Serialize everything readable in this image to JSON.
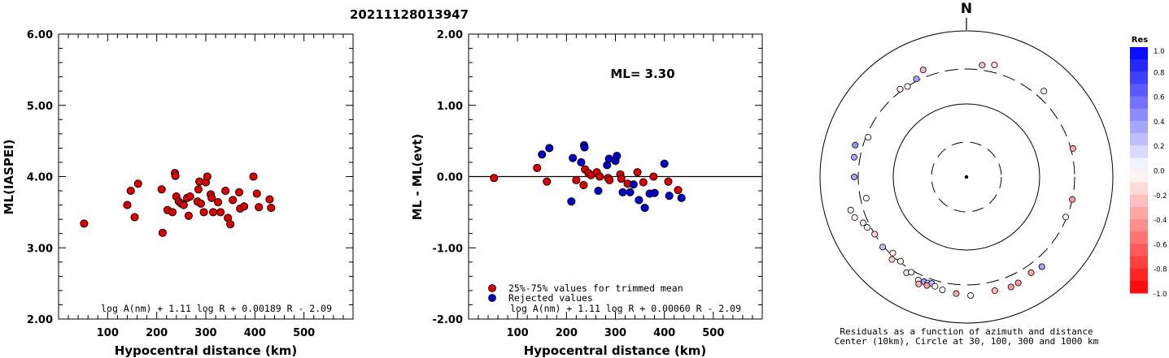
{
  "title": "20211128013947",
  "chart_data": [
    {
      "type": "scatter",
      "title": "",
      "xlabel": "Hypocentral distance (km)",
      "ylabel": "ML(IASPEI)",
      "xlim": [
        0,
        600
      ],
      "ylim": [
        2.0,
        6.0
      ],
      "xticks": [
        "100",
        "200",
        "300",
        "400",
        "500"
      ],
      "yticks": [
        "2.00",
        "3.00",
        "4.00",
        "5.00",
        "6.00"
      ],
      "formula": "log A(nm) + 1.11 log R + 0.00189 R - 2.09",
      "series": [
        {
          "color": "#dd0000",
          "points": [
            [
              52,
              3.34
            ],
            [
              140,
              3.6
            ],
            [
              147,
              3.8
            ],
            [
              155,
              3.43
            ],
            [
              162,
              3.9
            ],
            [
              210,
              3.82
            ],
            [
              212,
              3.21
            ],
            [
              222,
              3.53
            ],
            [
              232,
              3.5
            ],
            [
              237,
              4.05
            ],
            [
              238,
              4.01
            ],
            [
              240,
              3.72
            ],
            [
              245,
              3.65
            ],
            [
              250,
              3.62
            ],
            [
              255,
              3.6
            ],
            [
              262,
              3.7
            ],
            [
              265,
              3.45
            ],
            [
              268,
              3.72
            ],
            [
              283,
              3.65
            ],
            [
              285,
              3.82
            ],
            [
              287,
              3.93
            ],
            [
              290,
              3.62
            ],
            [
              296,
              3.5
            ],
            [
              300,
              3.92
            ],
            [
              303,
              4.0
            ],
            [
              310,
              3.75
            ],
            [
              312,
              3.7
            ],
            [
              315,
              3.5
            ],
            [
              325,
              3.64
            ],
            [
              330,
              3.5
            ],
            [
              340,
              3.8
            ],
            [
              345,
              3.42
            ],
            [
              350,
              3.33
            ],
            [
              355,
              3.67
            ],
            [
              368,
              3.78
            ],
            [
              370,
              3.55
            ],
            [
              378,
              3.58
            ],
            [
              397,
              4.0
            ],
            [
              404,
              3.76
            ],
            [
              408,
              3.57
            ],
            [
              430,
              3.68
            ],
            [
              433,
              3.56
            ]
          ]
        }
      ]
    },
    {
      "type": "scatter",
      "title": "",
      "xlabel": "Hypocentral distance (km)",
      "ylabel": "ML - ML(evt)",
      "xlim": [
        0,
        600
      ],
      "ylim": [
        -2.0,
        2.0
      ],
      "xticks": [
        "100",
        "200",
        "300",
        "400",
        "500"
      ],
      "yticks": [
        "-2.00",
        "-1.00",
        "0.00",
        "1.00",
        "2.00"
      ],
      "annotation": "ML= 3.30",
      "formula": "log A(nm) + 1.11 log R + 0.00060 R - 2.09",
      "series": [
        {
          "name": "25%-75% values for trimmed mean",
          "color": "#dd0000",
          "points": [
            [
              52,
              -0.02
            ],
            [
              140,
              0.12
            ],
            [
              160,
              -0.07
            ],
            [
              220,
              -0.05
            ],
            [
              235,
              -0.12
            ],
            [
              238,
              0.1
            ],
            [
              245,
              0.05
            ],
            [
              250,
              0.02
            ],
            [
              262,
              0.06
            ],
            [
              268,
              0.0
            ],
            [
              285,
              -0.02
            ],
            [
              288,
              -0.05
            ],
            [
              310,
              0.03
            ],
            [
              312,
              -0.03
            ],
            [
              325,
              -0.1
            ],
            [
              345,
              0.06
            ],
            [
              357,
              -0.08
            ],
            [
              378,
              0.0
            ],
            [
              408,
              -0.07
            ],
            [
              428,
              -0.19
            ]
          ]
        },
        {
          "name": "Rejected values",
          "color": "#0000cc",
          "points": [
            [
              150,
              0.31
            ],
            [
              165,
              0.4
            ],
            [
              210,
              -0.35
            ],
            [
              213,
              0.26
            ],
            [
              230,
              0.2
            ],
            [
              236,
              0.44
            ],
            [
              237,
              0.41
            ],
            [
              265,
              -0.2
            ],
            [
              283,
              0.16
            ],
            [
              287,
              0.25
            ],
            [
              300,
              0.22
            ],
            [
              303,
              0.29
            ],
            [
              315,
              -0.22
            ],
            [
              330,
              -0.22
            ],
            [
              337,
              -0.11
            ],
            [
              348,
              -0.33
            ],
            [
              360,
              -0.44
            ],
            [
              370,
              -0.24
            ],
            [
              380,
              -0.23
            ],
            [
              400,
              0.18
            ],
            [
              410,
              -0.27
            ],
            [
              435,
              -0.3
            ]
          ]
        }
      ]
    },
    {
      "type": "scatter",
      "title": "N",
      "subtype": "polar",
      "caption_line1": "Residuals as a function of azimuth and distance",
      "caption_line2": "Center (10km), Circle at 30, 100, 300 and 1000 km",
      "colorbar_label": "Res",
      "colorbar_ticks": [
        "1.0",
        "0.8",
        "0.6",
        "0.4",
        "0.2",
        "0.0",
        "-0.2",
        "-0.4",
        "-0.6",
        "-0.8",
        "-1.0"
      ],
      "colorbar_range": [
        -1.0,
        1.0
      ],
      "rings_km": [
        30,
        100,
        300,
        1000
      ],
      "points_az_dist_res": [
        [
          8,
          350,
          -0.25
        ],
        [
          14,
          380,
          -0.15
        ],
        [
          338,
          380,
          -0.3
        ],
        [
          327,
          300,
          -0.05
        ],
        [
          323,
          320,
          -0.05
        ],
        [
          333,
          320,
          0.35
        ],
        [
          42,
          380,
          -0.05
        ],
        [
          75,
          320,
          -0.35
        ],
        [
          102,
          300,
          -0.4
        ],
        [
          112,
          290,
          -0.05
        ],
        [
          286,
          380,
          0.4
        ],
        [
          280,
          360,
          0.35
        ],
        [
          270,
          340,
          0.35
        ],
        [
          258,
          250,
          -0.05
        ],
        [
          292,
          280,
          -0.05
        ],
        [
          254,
          440,
          -0.05
        ],
        [
          250,
          420,
          -0.05
        ],
        [
          243,
          330,
          -0.05
        ],
        [
          238,
          300,
          -0.2
        ],
        [
          230,
          310,
          0.25
        ],
        [
          222,
          330,
          -0.2
        ],
        [
          212,
          350,
          0.1
        ],
        [
          205,
          360,
          -0.05
        ],
        [
          202,
          350,
          0.35
        ],
        [
          200,
          350,
          0.25
        ],
        [
          198,
          340,
          0.3
        ],
        [
          196,
          360,
          -0.05
        ],
        [
          200,
          380,
          -0.4
        ],
        [
          204,
          400,
          -0.3
        ],
        [
          192,
          380,
          -0.05
        ],
        [
          185,
          400,
          -0.35
        ],
        [
          178,
          420,
          -0.05
        ],
        [
          166,
          400,
          -0.3
        ],
        [
          158,
          420,
          -0.4
        ],
        [
          154,
          410,
          -0.4
        ],
        [
          146,
          380,
          -0.35
        ],
        [
          140,
          400,
          0.35
        ],
        [
          224,
          280,
          -0.05
        ],
        [
          218,
          290,
          -0.05
        ],
        [
          210,
          320,
          -0.05
        ],
        [
          246,
          350,
          -0.05
        ]
      ]
    }
  ]
}
